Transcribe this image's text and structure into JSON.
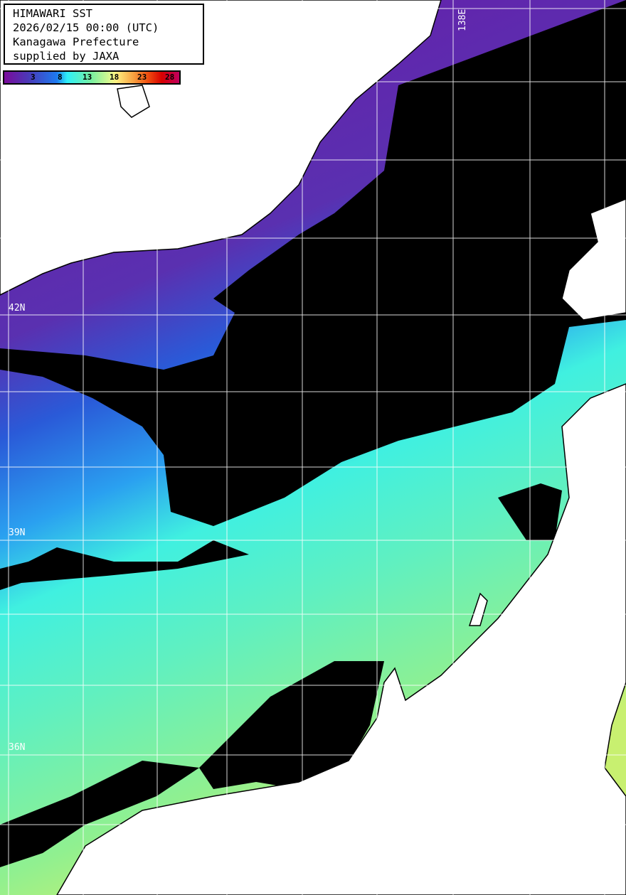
{
  "info": {
    "title": "HIMAWARI SST",
    "datetime": "2026/02/15 00:00 (UTC)",
    "region": "Kanagawa Prefecture",
    "credit": "supplied by JAXA"
  },
  "colorbar": {
    "ticks": [
      "3",
      "8",
      "13",
      "18",
      "23",
      "28"
    ],
    "colors": [
      "#7a0a9a",
      "#1e7af0",
      "#2ef0f8",
      "#7af0a0",
      "#fff080",
      "#f8a040",
      "#d80000",
      "#c00060"
    ]
  },
  "grid": {
    "lat_labels": [
      "42N",
      "39N",
      "36N"
    ],
    "lon_labels": [
      "138E"
    ]
  },
  "colors": {
    "land": "#ffffff",
    "cloud_no_data": "#000000",
    "grid": "#ffffff"
  }
}
